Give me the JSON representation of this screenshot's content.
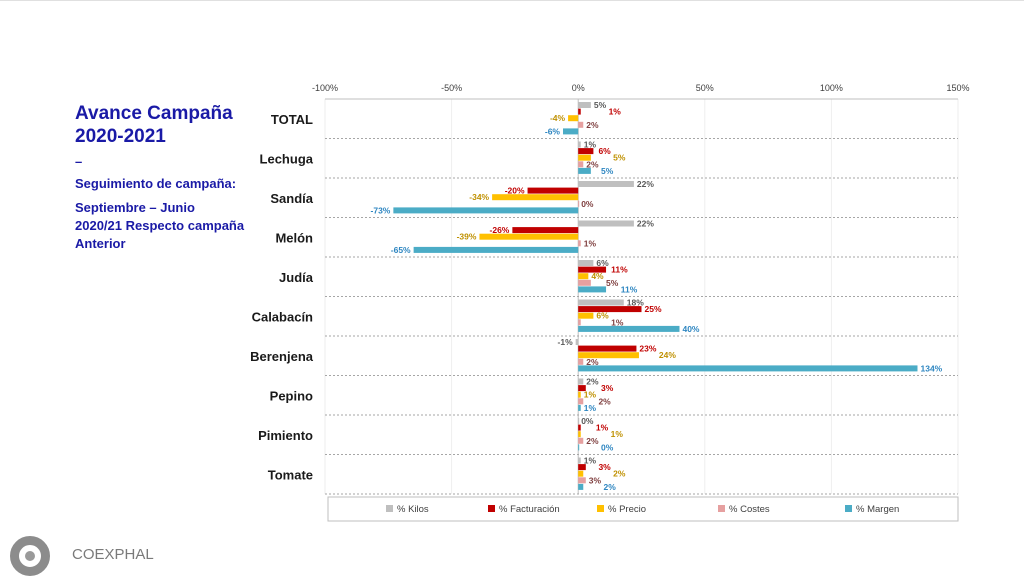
{
  "sidebar": {
    "title": "Avance Campaña 2020-2021",
    "dash": "–",
    "subtitle": "Seguimiento de campaña:",
    "period": "Septiembre – Junio 2020/21 Respecto campaña Anterior"
  },
  "footer": {
    "brand": "COEXPHAL"
  },
  "chart_data": {
    "type": "bar",
    "orientation": "horizontal",
    "categories": [
      "TOTAL",
      "Lechuga",
      "Sandía",
      "Melón",
      "Judía",
      "Calabacín",
      "Berenjena",
      "Pepino",
      "Pimiento",
      "Tomate"
    ],
    "xlim": [
      -100,
      150
    ],
    "xticks": [
      -100,
      -50,
      0,
      50,
      100,
      150
    ],
    "xtick_labels": [
      "-100%",
      "-50%",
      "0%",
      "50%",
      "100%",
      "150%"
    ],
    "legend_position": "bottom",
    "series": [
      {
        "name": "% Kilos",
        "color": "#bfbfbf",
        "label_color": "#595959",
        "values": [
          5,
          1,
          22,
          22,
          6,
          18,
          -1,
          2,
          0,
          1
        ]
      },
      {
        "name": "% Facturación",
        "color": "#c00000",
        "label_color": "#c00000",
        "values": [
          1,
          6,
          -20,
          -26,
          11,
          25,
          23,
          3,
          1,
          3
        ]
      },
      {
        "name": "% Precio",
        "color": "#ffc000",
        "label_color": "#bf9000",
        "values": [
          -4,
          5,
          -34,
          -39,
          4,
          6,
          24,
          1,
          1,
          2
        ]
      },
      {
        "name": "% Costes",
        "color": "#e6a0a0",
        "label_color": "#7f3f3f",
        "values": [
          2,
          2,
          0,
          1,
          5,
          1,
          2,
          2,
          2,
          3
        ]
      },
      {
        "name": "% Margen",
        "color": "#4bacc6",
        "label_color": "#2e86c1",
        "values": [
          -6,
          5,
          -73,
          -65,
          11,
          40,
          134,
          1,
          0,
          2
        ]
      }
    ]
  }
}
